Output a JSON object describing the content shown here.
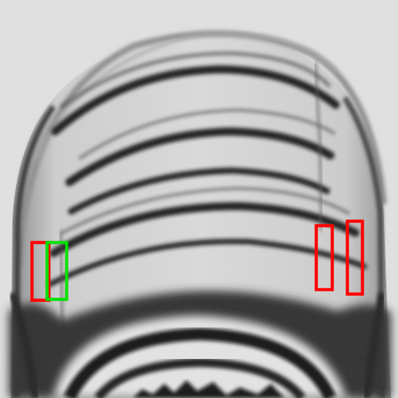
{
  "image": {
    "subject": "x-ray-bottle-neck-threads",
    "background_color": "#e3e3e3",
    "material_color": "#111111"
  },
  "annotations": {
    "boxes": [
      {
        "id": "left-outer",
        "color": "#ff0000"
      },
      {
        "id": "left-inner",
        "color": "#00e000"
      },
      {
        "id": "right-inner",
        "color": "#ff0000"
      },
      {
        "id": "right-outer",
        "color": "#ff0000"
      }
    ]
  }
}
